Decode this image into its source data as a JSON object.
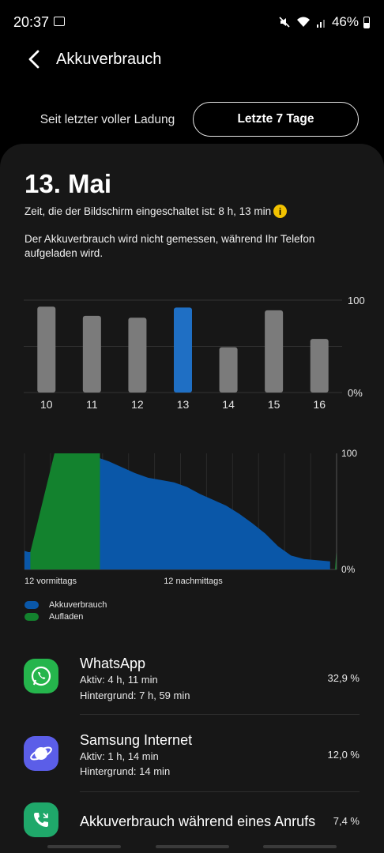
{
  "status_bar": {
    "time": "20:37",
    "battery_percent": "46%"
  },
  "header": {
    "title": "Akkuverbrauch"
  },
  "tabs": [
    {
      "label": "Seit letzter voller Ladung",
      "selected": false
    },
    {
      "label": "Letzte 7 Tage",
      "selected": true
    }
  ],
  "summary": {
    "date": "13. Mai",
    "screen_time": "Zeit, die der Bildschirm eingeschaltet ist: 8 h, 13 min",
    "note": "Der Akkuverbrauch wird nicht gemessen, während Ihr Telefon aufgeladen wird."
  },
  "chart_data": [
    {
      "type": "bar",
      "categories": [
        "10",
        "11",
        "12",
        "13",
        "14",
        "15",
        "16"
      ],
      "values": [
        93,
        83,
        81,
        92,
        49,
        89,
        58
      ],
      "selected_index": 3,
      "y_tick_labels": [
        "100",
        "0%"
      ],
      "ylim": [
        0,
        100
      ],
      "colors": {
        "default": "#7b7b7b",
        "selected": "#1f6fc4"
      }
    },
    {
      "type": "area",
      "x_start_label": "12 vormittags",
      "x_mid_label": "12 nachmittags",
      "y_tick_labels": [
        "100",
        "0%"
      ],
      "ylim": [
        0,
        100
      ],
      "series": [
        {
          "name": "Akkuverbrauch",
          "color": "#0a57a8",
          "x": [
            0,
            0.3,
            0.45,
            3.1,
            4.5,
            5.5,
            6.5,
            7.5,
            8.5,
            9.5,
            10.5,
            11.5,
            12.5,
            13.5,
            14.5,
            15.5,
            16.5,
            17.5,
            18.5,
            19.5,
            20.5,
            21.5,
            22.5,
            23.5
          ],
          "values": [
            16,
            15,
            15,
            100,
            99,
            97,
            93,
            88,
            83,
            79,
            77,
            75,
            71,
            65,
            60,
            55,
            48,
            40,
            31,
            20,
            12,
            9,
            8,
            7
          ]
        },
        {
          "name": "Aufladen",
          "color": "#13822e",
          "x": [
            0.45,
            2.3,
            3.1,
            5.0,
            5.8
          ],
          "values": [
            15,
            100,
            100,
            100,
            100
          ]
        }
      ]
    }
  ],
  "legend": [
    {
      "label": "Akkuverbrauch",
      "color": "#0a57a8"
    },
    {
      "label": "Aufladen",
      "color": "#13822e"
    }
  ],
  "apps": [
    {
      "name": "WhatsApp",
      "active": "Aktiv: 4 h, 11 min",
      "background": "Hintergrund: 7 h, 59 min",
      "percent": "32,9 %",
      "icon": "whatsapp-icon"
    },
    {
      "name": "Samsung Internet",
      "active": "Aktiv: 1 h, 14 min",
      "background": "Hintergrund: 14 min",
      "percent": "12,0 %",
      "icon": "samsung-internet-icon"
    },
    {
      "name": "Akkuverbrauch während eines Anrufs",
      "percent": "7,4 %",
      "icon": "call-icon"
    }
  ]
}
